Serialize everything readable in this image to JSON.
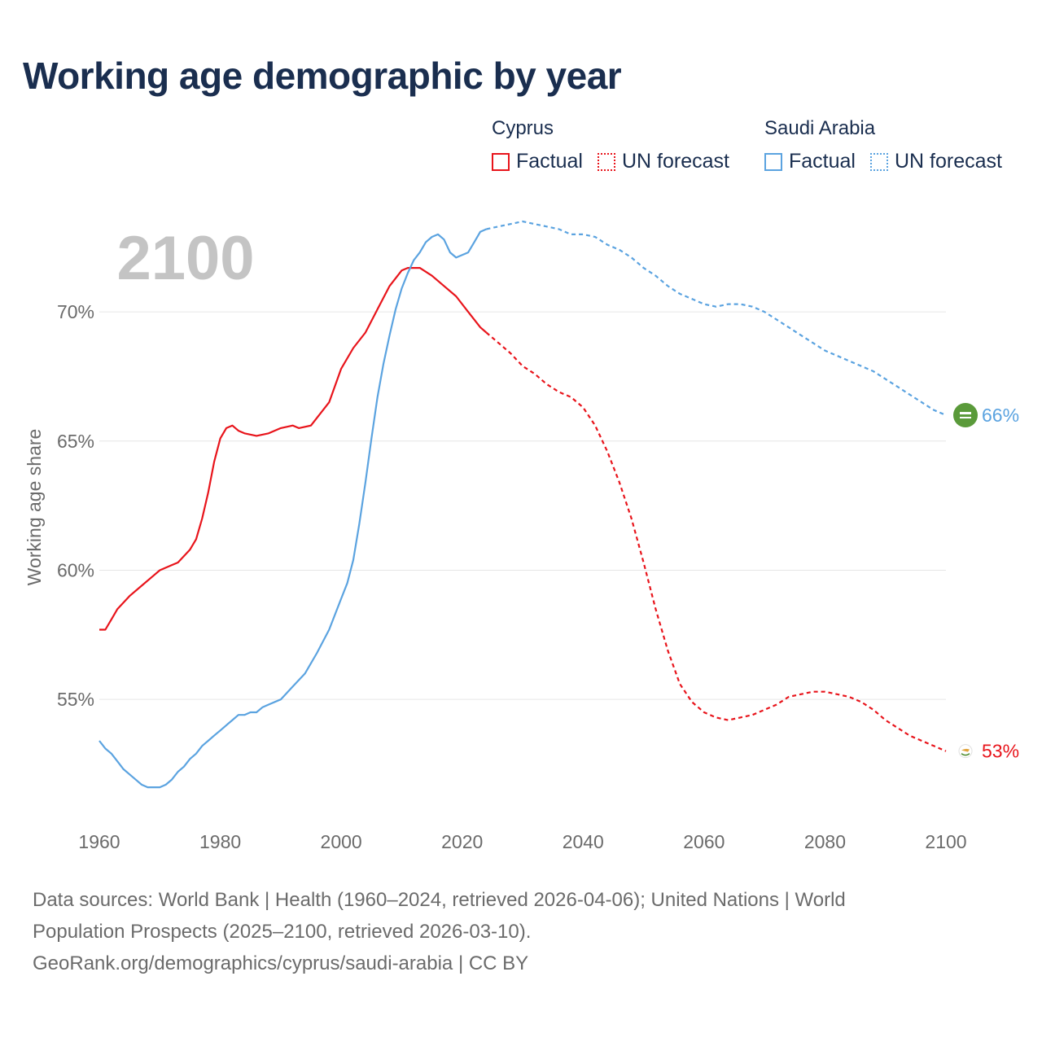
{
  "title": "Working age demographic by year",
  "legend": {
    "groups": [
      {
        "name": "Cyprus",
        "color": "#e8141b",
        "factual_label": "Factual",
        "forecast_label": "UN forecast"
      },
      {
        "name": "Saudi Arabia",
        "color": "#5ba3e0",
        "factual_label": "Factual",
        "forecast_label": "UN forecast"
      }
    ]
  },
  "chart_data": {
    "type": "line",
    "year_label": "2100",
    "ylabel": "Working age share",
    "xlim": [
      1960,
      2100
    ],
    "ylim": [
      50.5,
      73.5
    ],
    "x_ticks": [
      1960,
      1980,
      2000,
      2020,
      2040,
      2060,
      2080,
      2100
    ],
    "x_tick_labels": [
      "1960",
      "1980",
      "2000",
      "2020",
      "2040",
      "2060",
      "2080",
      "2100"
    ],
    "y_ticks": [
      55,
      60,
      65,
      70
    ],
    "y_tick_labels": [
      "55%",
      "60%",
      "65%",
      "70%"
    ],
    "grid": true,
    "forecast_start": 2024,
    "series": [
      {
        "name": "Cyprus",
        "color": "#e8141b",
        "end_label": "53%",
        "end_value": 53.0,
        "points": [
          [
            1960,
            57.7
          ],
          [
            1961,
            57.7
          ],
          [
            1962,
            58.1
          ],
          [
            1963,
            58.5
          ],
          [
            1965,
            59.0
          ],
          [
            1967,
            59.4
          ],
          [
            1969,
            59.8
          ],
          [
            1970,
            60.0
          ],
          [
            1972,
            60.2
          ],
          [
            1973,
            60.3
          ],
          [
            1975,
            60.8
          ],
          [
            1976,
            61.2
          ],
          [
            1977,
            62.0
          ],
          [
            1978,
            63.0
          ],
          [
            1979,
            64.2
          ],
          [
            1980,
            65.1
          ],
          [
            1981,
            65.5
          ],
          [
            1982,
            65.6
          ],
          [
            1983,
            65.4
          ],
          [
            1984,
            65.3
          ],
          [
            1986,
            65.2
          ],
          [
            1988,
            65.3
          ],
          [
            1990,
            65.5
          ],
          [
            1992,
            65.6
          ],
          [
            1993,
            65.5
          ],
          [
            1995,
            65.6
          ],
          [
            1996,
            65.9
          ],
          [
            1998,
            66.5
          ],
          [
            2000,
            67.8
          ],
          [
            2002,
            68.6
          ],
          [
            2004,
            69.2
          ],
          [
            2006,
            70.1
          ],
          [
            2008,
            71.0
          ],
          [
            2010,
            71.6
          ],
          [
            2011,
            71.7
          ],
          [
            2013,
            71.7
          ],
          [
            2015,
            71.4
          ],
          [
            2017,
            71.0
          ],
          [
            2019,
            70.6
          ],
          [
            2021,
            70.0
          ],
          [
            2023,
            69.4
          ],
          [
            2024,
            69.2
          ],
          [
            2026,
            68.8
          ],
          [
            2028,
            68.4
          ],
          [
            2030,
            67.9
          ],
          [
            2032,
            67.6
          ],
          [
            2034,
            67.2
          ],
          [
            2036,
            66.9
          ],
          [
            2038,
            66.7
          ],
          [
            2040,
            66.3
          ],
          [
            2042,
            65.6
          ],
          [
            2044,
            64.6
          ],
          [
            2046,
            63.4
          ],
          [
            2048,
            62.0
          ],
          [
            2050,
            60.3
          ],
          [
            2052,
            58.5
          ],
          [
            2054,
            56.9
          ],
          [
            2056,
            55.6
          ],
          [
            2058,
            54.9
          ],
          [
            2060,
            54.5
          ],
          [
            2062,
            54.3
          ],
          [
            2064,
            54.2
          ],
          [
            2066,
            54.3
          ],
          [
            2068,
            54.4
          ],
          [
            2070,
            54.6
          ],
          [
            2072,
            54.8
          ],
          [
            2074,
            55.1
          ],
          [
            2076,
            55.2
          ],
          [
            2078,
            55.3
          ],
          [
            2080,
            55.3
          ],
          [
            2082,
            55.2
          ],
          [
            2084,
            55.1
          ],
          [
            2086,
            54.9
          ],
          [
            2088,
            54.6
          ],
          [
            2090,
            54.2
          ],
          [
            2092,
            53.9
          ],
          [
            2094,
            53.6
          ],
          [
            2096,
            53.4
          ],
          [
            2098,
            53.2
          ],
          [
            2100,
            53.0
          ]
        ]
      },
      {
        "name": "Saudi Arabia",
        "color": "#5ba3e0",
        "end_label": "66%",
        "end_value": 66.0,
        "points": [
          [
            1960,
            53.4
          ],
          [
            1961,
            53.1
          ],
          [
            1962,
            52.9
          ],
          [
            1963,
            52.6
          ],
          [
            1964,
            52.3
          ],
          [
            1965,
            52.1
          ],
          [
            1966,
            51.9
          ],
          [
            1967,
            51.7
          ],
          [
            1968,
            51.6
          ],
          [
            1969,
            51.6
          ],
          [
            1970,
            51.6
          ],
          [
            1971,
            51.7
          ],
          [
            1972,
            51.9
          ],
          [
            1973,
            52.2
          ],
          [
            1974,
            52.4
          ],
          [
            1975,
            52.7
          ],
          [
            1976,
            52.9
          ],
          [
            1977,
            53.2
          ],
          [
            1978,
            53.4
          ],
          [
            1979,
            53.6
          ],
          [
            1980,
            53.8
          ],
          [
            1981,
            54.0
          ],
          [
            1982,
            54.2
          ],
          [
            1983,
            54.4
          ],
          [
            1984,
            54.4
          ],
          [
            1985,
            54.5
          ],
          [
            1986,
            54.5
          ],
          [
            1987,
            54.7
          ],
          [
            1988,
            54.8
          ],
          [
            1990,
            55.0
          ],
          [
            1992,
            55.5
          ],
          [
            1994,
            56.0
          ],
          [
            1996,
            56.8
          ],
          [
            1998,
            57.7
          ],
          [
            2000,
            58.9
          ],
          [
            2001,
            59.5
          ],
          [
            2002,
            60.4
          ],
          [
            2003,
            61.8
          ],
          [
            2004,
            63.4
          ],
          [
            2005,
            65.1
          ],
          [
            2006,
            66.7
          ],
          [
            2007,
            68.0
          ],
          [
            2008,
            69.1
          ],
          [
            2009,
            70.1
          ],
          [
            2010,
            70.9
          ],
          [
            2011,
            71.5
          ],
          [
            2012,
            72.0
          ],
          [
            2013,
            72.3
          ],
          [
            2014,
            72.7
          ],
          [
            2015,
            72.9
          ],
          [
            2016,
            73.0
          ],
          [
            2017,
            72.8
          ],
          [
            2018,
            72.3
          ],
          [
            2019,
            72.1
          ],
          [
            2021,
            72.3
          ],
          [
            2022,
            72.7
          ],
          [
            2023,
            73.1
          ],
          [
            2024,
            73.2
          ],
          [
            2026,
            73.3
          ],
          [
            2028,
            73.4
          ],
          [
            2030,
            73.5
          ],
          [
            2032,
            73.4
          ],
          [
            2034,
            73.3
          ],
          [
            2036,
            73.2
          ],
          [
            2038,
            73.0
          ],
          [
            2040,
            73.0
          ],
          [
            2042,
            72.9
          ],
          [
            2044,
            72.6
          ],
          [
            2046,
            72.4
          ],
          [
            2048,
            72.1
          ],
          [
            2050,
            71.7
          ],
          [
            2052,
            71.4
          ],
          [
            2054,
            71.0
          ],
          [
            2056,
            70.7
          ],
          [
            2058,
            70.5
          ],
          [
            2060,
            70.3
          ],
          [
            2062,
            70.2
          ],
          [
            2064,
            70.3
          ],
          [
            2066,
            70.3
          ],
          [
            2068,
            70.2
          ],
          [
            2070,
            70.0
          ],
          [
            2072,
            69.7
          ],
          [
            2074,
            69.4
          ],
          [
            2076,
            69.1
          ],
          [
            2078,
            68.8
          ],
          [
            2080,
            68.5
          ],
          [
            2082,
            68.3
          ],
          [
            2084,
            68.1
          ],
          [
            2086,
            67.9
          ],
          [
            2088,
            67.7
          ],
          [
            2090,
            67.4
          ],
          [
            2092,
            67.1
          ],
          [
            2094,
            66.8
          ],
          [
            2096,
            66.5
          ],
          [
            2098,
            66.2
          ],
          [
            2100,
            66.0
          ]
        ]
      }
    ]
  },
  "footer": {
    "line1": "Data sources: World Bank | Health (1960–2024, retrieved 2026-04-06); United Nations | World",
    "line2": "Population Prospects (2025–2100, retrieved 2026-03-10).",
    "line3": "GeoRank.org/demographics/cyprus/saudi-arabia | CC BY"
  }
}
